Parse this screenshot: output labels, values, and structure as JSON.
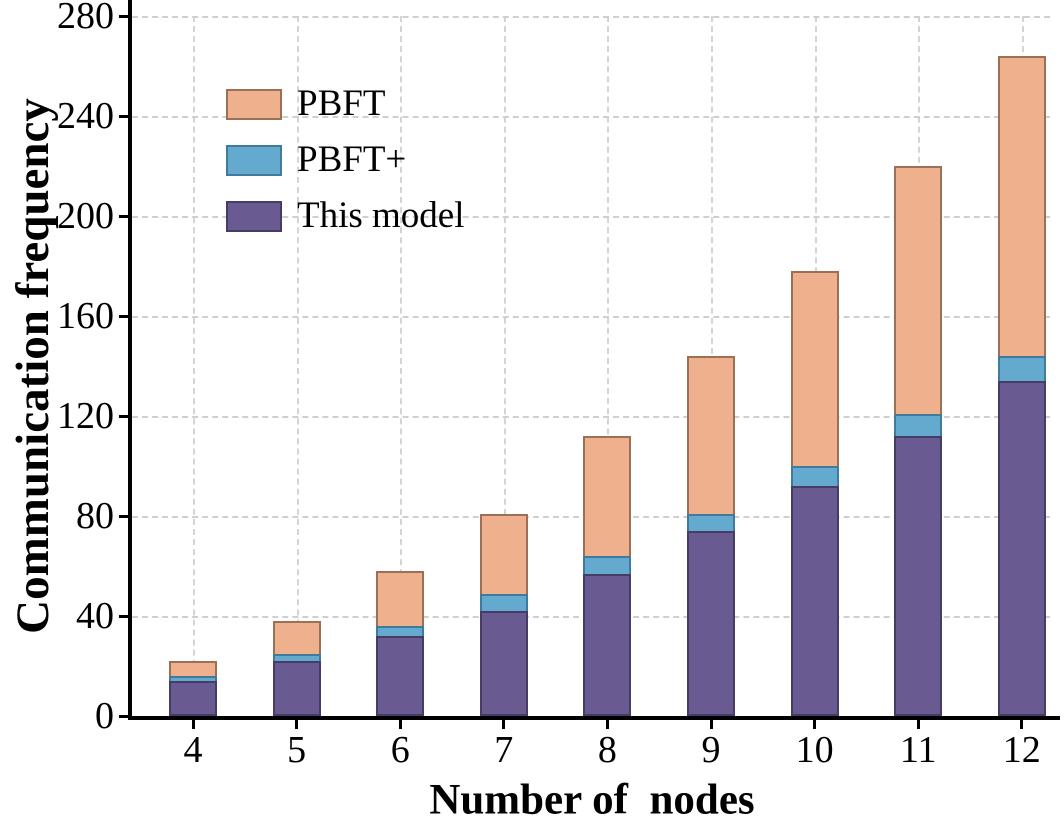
{
  "figure": {
    "background": "#ffffff",
    "axis_color": "#000000",
    "grid_color": "#cfcfcf"
  },
  "chart_data": {
    "type": "bar",
    "mode": "overlay",
    "title": "",
    "xlabel": "Number of  nodes",
    "ylabel": "Communication frequency",
    "categories": [
      4,
      5,
      6,
      7,
      8,
      9,
      10,
      11,
      12
    ],
    "series": [
      {
        "name": "PBFT",
        "color": "#EFB08D",
        "edge": "#9c7057",
        "values": [
          22,
          38,
          58,
          81,
          112,
          144,
          178,
          220,
          264
        ]
      },
      {
        "name": "PBFT+",
        "color": "#64A9CE",
        "edge": "#417b9c",
        "values": [
          16,
          25,
          36,
          49,
          64,
          81,
          100,
          121,
          144
        ]
      },
      {
        "name": "This model",
        "color": "#6A5A92",
        "edge": "#473c63",
        "values": [
          14,
          22,
          32,
          42,
          57,
          74,
          92,
          112,
          134
        ]
      }
    ],
    "ylim": [
      0,
      280
    ],
    "yticks": [
      0,
      40,
      80,
      120,
      160,
      200,
      240,
      280
    ],
    "grid": "dashed",
    "legend_position": "top-left"
  }
}
